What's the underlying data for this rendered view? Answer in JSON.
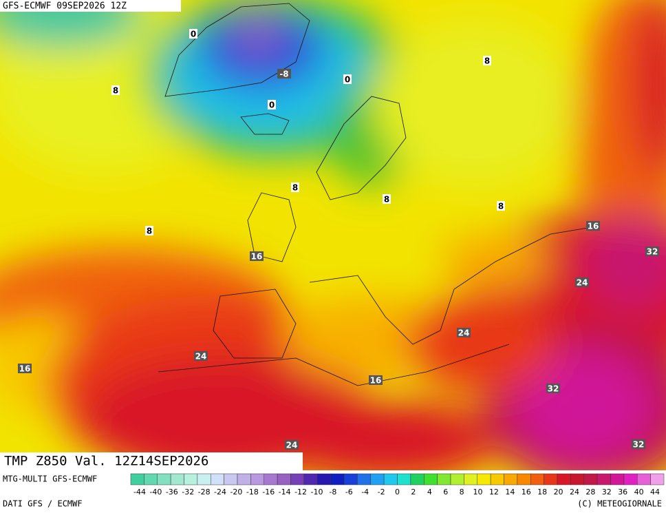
{
  "header": "GFS-ECMWF 09SEP2026 12Z",
  "product": "TMP Z850 Val. 12Z14SEP2026",
  "contour_labels": [
    0,
    -8,
    0,
    0,
    8,
    8,
    8,
    8,
    8,
    8,
    16,
    16,
    16,
    16,
    24,
    24,
    24,
    24,
    32,
    32,
    32
  ],
  "legend": {
    "title": "MTG-MULTI GFS-ECMWF",
    "ticks": [
      -44,
      -40,
      -36,
      -32,
      -28,
      -24,
      -20,
      -18,
      -16,
      -14,
      -12,
      -10,
      -8,
      -6,
      -4,
      -2,
      0,
      2,
      4,
      6,
      8,
      10,
      12,
      14,
      16,
      18,
      20,
      24,
      28,
      32,
      36,
      40,
      44
    ],
    "colors": [
      "#40d0a0",
      "#60d8b0",
      "#80e0c0",
      "#a0e8d0",
      "#b8f0e0",
      "#c8f0f0",
      "#d0e0f8",
      "#c8c8f0",
      "#c0b0e8",
      "#b898e0",
      "#a878d0",
      "#9860c0",
      "#7840b8",
      "#5028b0",
      "#2818b0",
      "#1020c0",
      "#1840d8",
      "#2070e8",
      "#20a0f0",
      "#20c8f0",
      "#20e0d0",
      "#20d060",
      "#40e030",
      "#80e830",
      "#b0f030",
      "#e0f020",
      "#f8e800",
      "#f8c800",
      "#f8a800",
      "#f88800",
      "#f06010",
      "#e83818",
      "#d81828",
      "#c81830",
      "#c01848",
      "#c81870",
      "#d01898",
      "#e020c0",
      "#e860d8",
      "#f0a0e8"
    ]
  },
  "footer": {
    "left": "DATI GFS / ECMWF",
    "right": "(C) METEOGIORNALE"
  }
}
